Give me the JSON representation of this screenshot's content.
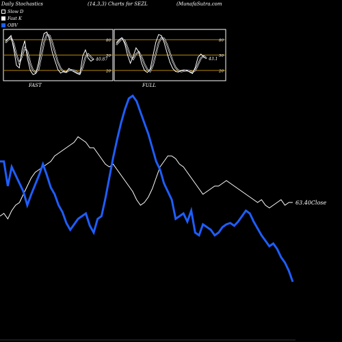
{
  "header": {
    "left": "Daily Stochastics",
    "params": "(14,3,3) Charts for SEZL",
    "site": "(MunafaSutra.com"
  },
  "legend": [
    {
      "label": "Slow D",
      "color": "#000000",
      "border": "#ffffff"
    },
    {
      "label": "Fast K",
      "color": "#ffffff",
      "border": "#ffffff"
    },
    {
      "label": "OBV",
      "color": "#1e5eff",
      "border": "#1e5eff"
    }
  ],
  "panels": {
    "fast": {
      "label": "FAST",
      "last_value": "40.87",
      "ticks": [
        "80",
        "50",
        "20"
      ],
      "k": [
        78,
        82,
        88,
        62,
        30,
        25,
        60,
        78,
        42,
        20,
        12,
        14,
        35,
        70,
        92,
        95,
        80,
        55,
        38,
        22,
        15,
        18,
        16,
        24,
        20,
        17,
        14,
        12,
        48,
        60,
        44,
        38,
        42
      ],
      "d": [
        74,
        80,
        84,
        72,
        50,
        34,
        48,
        64,
        56,
        34,
        20,
        16,
        22,
        48,
        75,
        90,
        88,
        74,
        54,
        36,
        24,
        18,
        17,
        20,
        21,
        20,
        17,
        14,
        26,
        46,
        52,
        46,
        41
      ]
    },
    "full": {
      "label": "FULL",
      "last_value": "43.1",
      "ticks": [
        "80",
        "50",
        "20"
      ],
      "k": [
        74,
        80,
        84,
        72,
        50,
        34,
        48,
        64,
        56,
        34,
        20,
        16,
        22,
        48,
        75,
        90,
        88,
        74,
        54,
        36,
        24,
        18,
        17,
        20,
        21,
        20,
        17,
        14,
        26,
        46,
        52,
        46,
        43
      ],
      "d": [
        70,
        76,
        82,
        78,
        64,
        48,
        42,
        52,
        56,
        46,
        32,
        22,
        18,
        30,
        52,
        74,
        84,
        82,
        70,
        54,
        38,
        26,
        20,
        18,
        19,
        20,
        19,
        17,
        20,
        32,
        44,
        48,
        44
      ]
    }
  },
  "chart_data": {
    "type": "line",
    "series": [
      {
        "name": "OBV",
        "color": "#1e5eff",
        "values": [
          0.52,
          0.52,
          0.34,
          0.48,
          0.42,
          0.36,
          0.3,
          0.2,
          0.28,
          0.35,
          0.42,
          0.5,
          0.42,
          0.33,
          0.28,
          0.2,
          0.15,
          0.07,
          0.02,
          0.06,
          0.1,
          0.12,
          0.14,
          0.05,
          0.0,
          0.1,
          0.12,
          0.25,
          0.4,
          0.55,
          0.68,
          0.8,
          0.9,
          0.98,
          1.0,
          0.96,
          0.88,
          0.8,
          0.72,
          0.62,
          0.52,
          0.46,
          0.36,
          0.3,
          0.24,
          0.1,
          0.12,
          0.14,
          0.08,
          0.16,
          0.0,
          -0.02,
          0.06,
          0.04,
          0.02,
          -0.02,
          0.0,
          0.04,
          0.06,
          0.07,
          0.05,
          0.08,
          0.12,
          0.16,
          0.14,
          0.08,
          0.03,
          -0.02,
          -0.06,
          -0.1,
          -0.08,
          -0.12,
          -0.18,
          -0.22,
          -0.28,
          -0.36
        ]
      },
      {
        "name": "Close",
        "color": "#ffffff",
        "end_label": "63.40Close",
        "values": [
          0.12,
          0.14,
          0.1,
          0.16,
          0.2,
          0.22,
          0.28,
          0.34,
          0.4,
          0.44,
          0.46,
          0.48,
          0.5,
          0.52,
          0.56,
          0.58,
          0.6,
          0.62,
          0.64,
          0.66,
          0.7,
          0.68,
          0.66,
          0.62,
          0.62,
          0.58,
          0.54,
          0.5,
          0.48,
          0.5,
          0.46,
          0.42,
          0.38,
          0.34,
          0.3,
          0.24,
          0.2,
          0.22,
          0.26,
          0.32,
          0.4,
          0.48,
          0.52,
          0.56,
          0.56,
          0.54,
          0.5,
          0.48,
          0.44,
          0.4,
          0.36,
          0.32,
          0.28,
          0.3,
          0.32,
          0.34,
          0.34,
          0.36,
          0.38,
          0.36,
          0.34,
          0.32,
          0.3,
          0.28,
          0.26,
          0.24,
          0.22,
          0.24,
          0.2,
          0.18,
          0.2,
          0.22,
          0.24,
          0.2,
          0.22,
          0.22
        ]
      }
    ]
  }
}
